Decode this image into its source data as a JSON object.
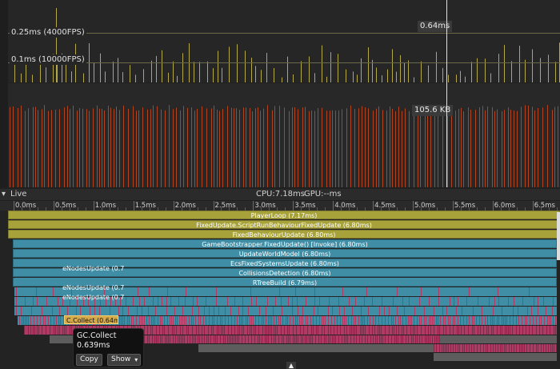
{
  "cpu_chart": {
    "ref_lines": [
      {
        "label": "0.25ms (4000FPS)"
      },
      {
        "label": "0.1ms (10000FPS)"
      }
    ],
    "cursor_value": "0.64ms",
    "colors": {
      "spike": "#b3a84a",
      "ref": "#6a6a4a"
    }
  },
  "memory_chart": {
    "cursor_value": "105.6 KB",
    "colors": {
      "bars": "#b2431e"
    }
  },
  "timeline": {
    "mode_label": "Live",
    "cpu_label": "CPU:7.18ms",
    "gpu_label": "GPU:--ms",
    "ruler_ticks": [
      "0.0ms",
      "0.5ms",
      "1.0ms",
      "1.5ms",
      "2.0ms",
      "2.5ms",
      "3.0ms",
      "3.5ms",
      "4.0ms",
      "4.5ms",
      "5.0ms",
      "5.5ms",
      "6.0ms",
      "6.5ms"
    ]
  },
  "flame": {
    "rows": [
      {
        "label": "PlayerLoop (7.17ms)",
        "color": "yellow"
      },
      {
        "label": "FixedUpdate.ScriptRunBehaviourFixedUpdate (6.80ms)",
        "color": "yellow"
      },
      {
        "label": "FixedBehaviourUpdate (6.80ms)",
        "color": "yellow"
      },
      {
        "label": "GameBootstrapper.FixedUpdate() [Invoke] (6.80ms)",
        "color": "blue"
      },
      {
        "label": "UpdateWorldModel (6.80ms)",
        "color": "blue"
      },
      {
        "label": "EcsFixedSystemsUpdate (6.80ms)",
        "color": "blue"
      },
      {
        "label": "CollisionsDetection (6.80ms)",
        "color": "blue"
      },
      {
        "label": "RTreeBuild (6.79ms)",
        "color": "blue"
      }
    ],
    "node_rows": [
      {
        "label": "eNodesUpdate (0.7"
      },
      {
        "label": "eNodesUpdate (0.7"
      },
      {
        "label": "eNodesUpdate (0.7"
      }
    ],
    "gc_bar_label": "C.Collect (0.64m",
    "colors": {
      "yellow": "#a8a23a",
      "blue": "#3f8ea6",
      "pink": "#b03a63",
      "gray": "#5d5d5d"
    }
  },
  "tooltip": {
    "title": "GC.Collect",
    "value": "0.639ms",
    "copy_label": "Copy",
    "show_label": "Show"
  }
}
